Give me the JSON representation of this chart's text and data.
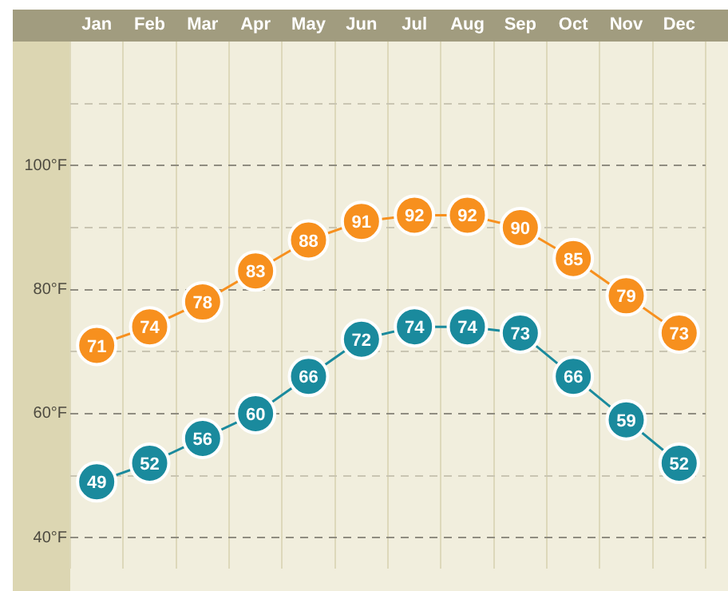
{
  "chart_data": {
    "type": "line",
    "categories": [
      "Jan",
      "Feb",
      "Mar",
      "Apr",
      "May",
      "Jun",
      "Jul",
      "Aug",
      "Sep",
      "Oct",
      "Nov",
      "Dec"
    ],
    "series": [
      {
        "color": "#f7901e",
        "values": [
          71,
          74,
          78,
          83,
          88,
          91,
          92,
          92,
          90,
          85,
          79,
          73
        ]
      },
      {
        "color": "#1a8a9d",
        "values": [
          49,
          52,
          56,
          60,
          66,
          72,
          74,
          74,
          73,
          66,
          59,
          52
        ]
      }
    ],
    "ylim": [
      35,
      120
    ],
    "yticks": [
      {
        "value": 40,
        "label": "40°F"
      },
      {
        "value": 50,
        "label": null
      },
      {
        "value": 60,
        "label": "60°F"
      },
      {
        "value": 70,
        "label": null
      },
      {
        "value": 80,
        "label": "80°F"
      },
      {
        "value": 90,
        "label": null
      },
      {
        "value": 100,
        "label": "100°F"
      },
      {
        "value": 110,
        "label": null
      }
    ],
    "grid": true,
    "legend": false,
    "marker": "circle",
    "line_style": "solid",
    "data_labels": true
  }
}
